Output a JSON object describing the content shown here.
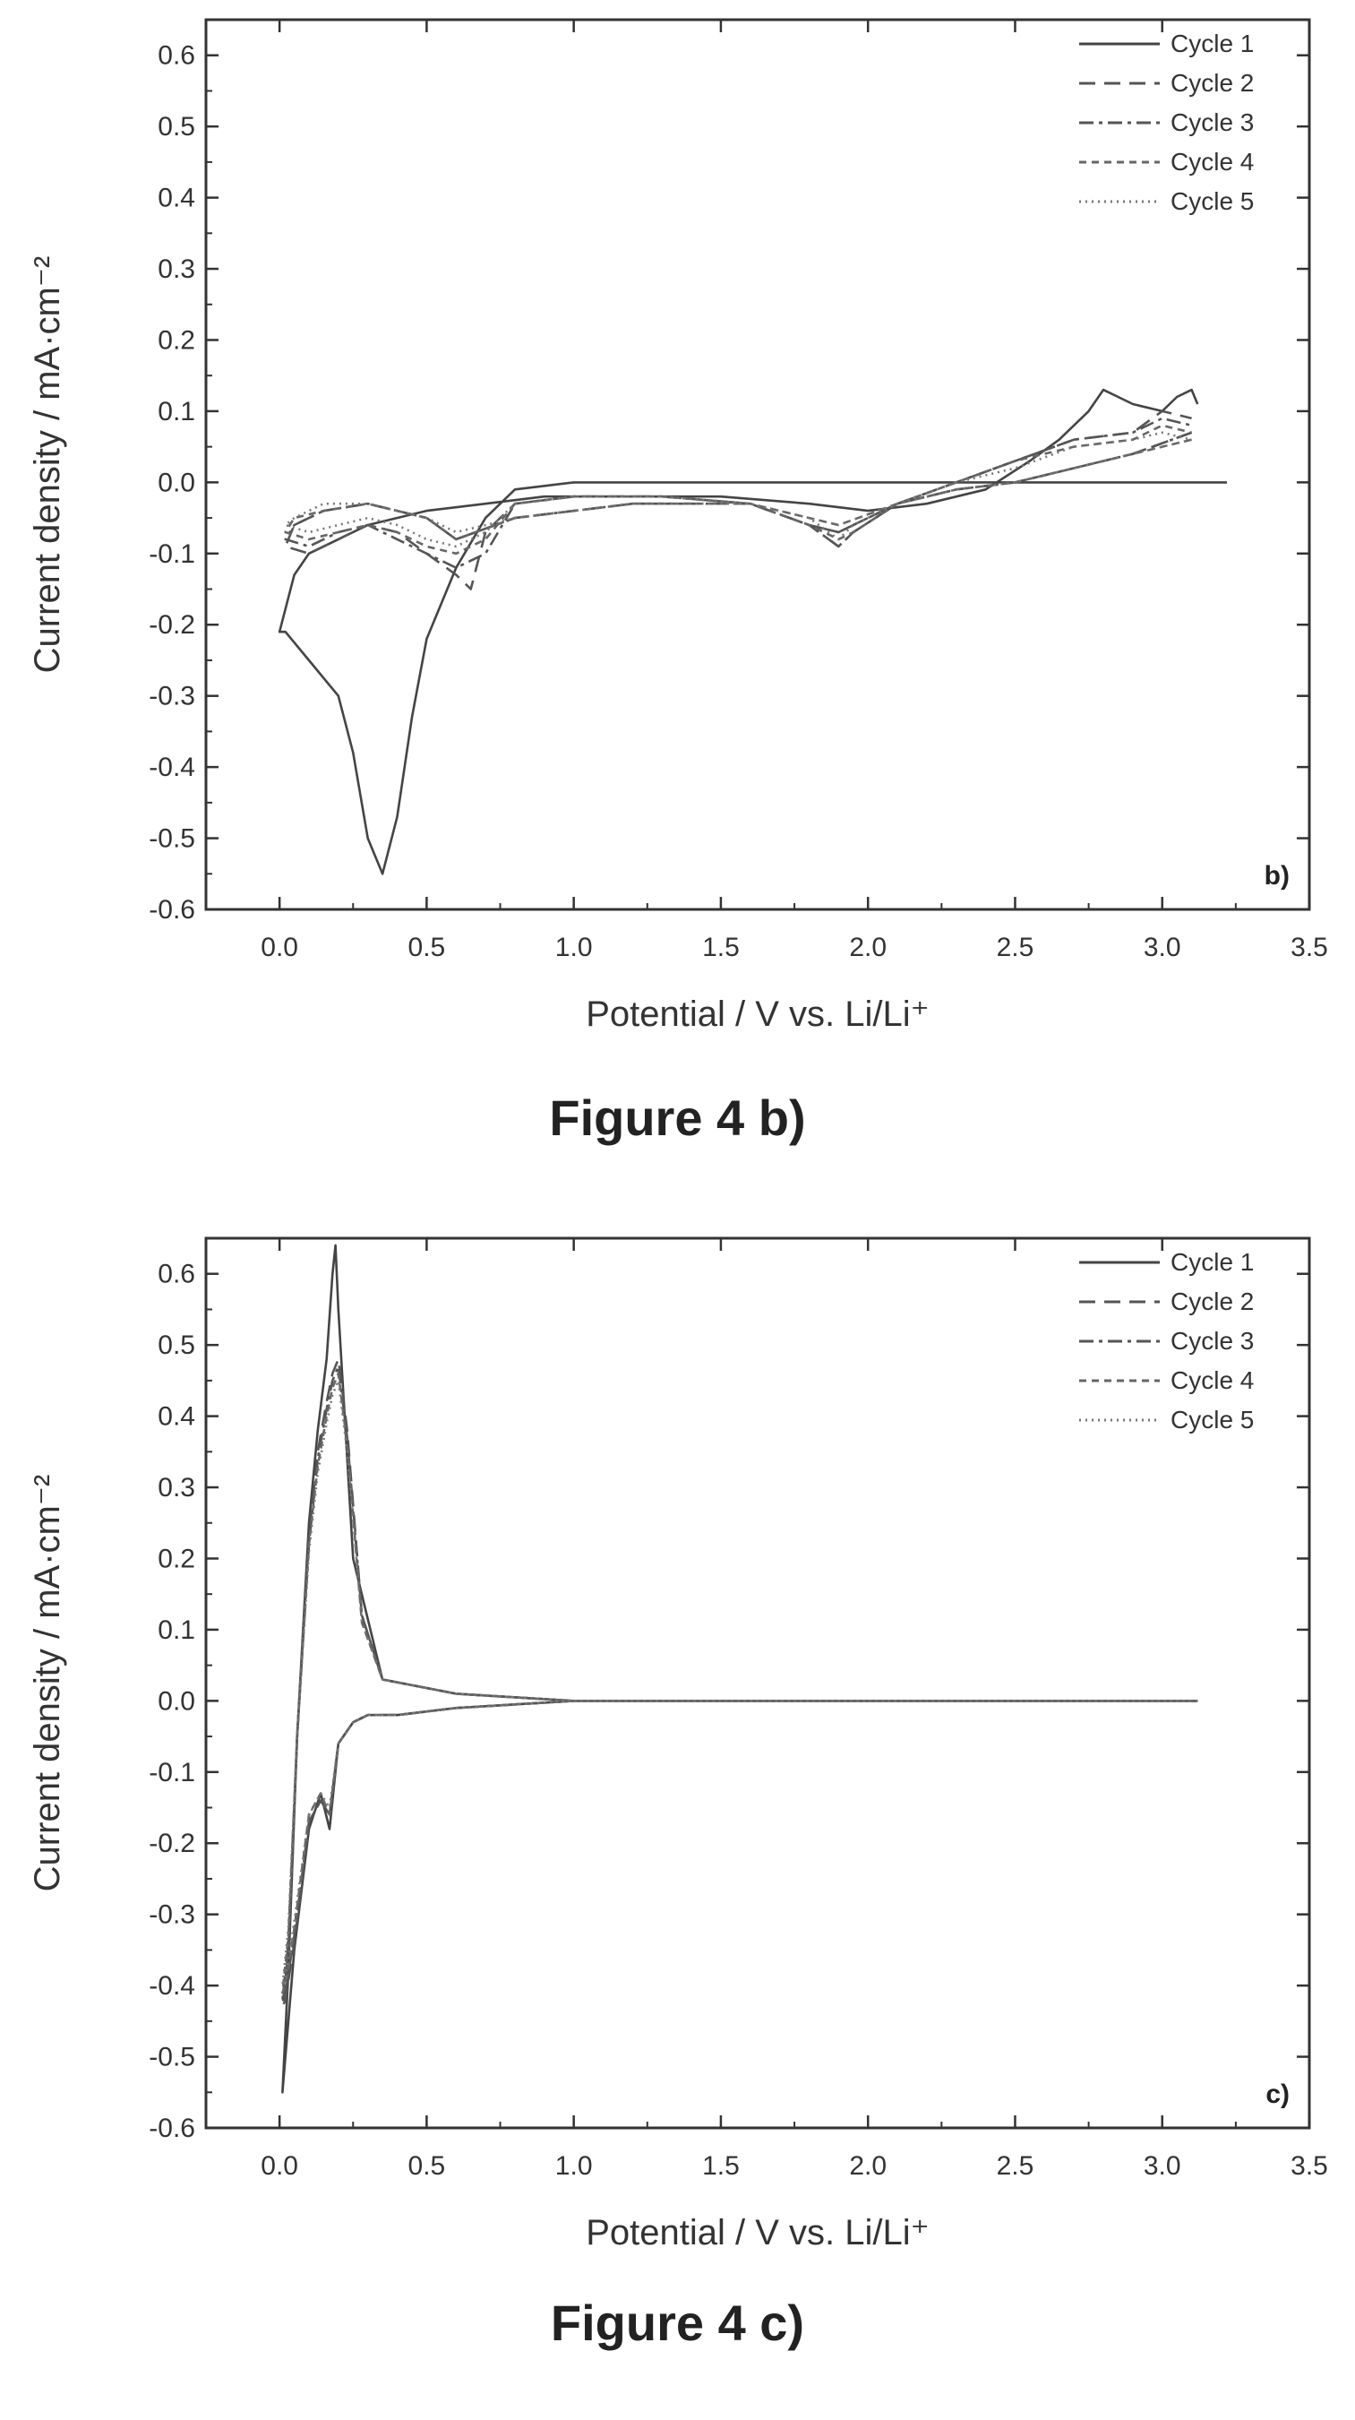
{
  "figures": [
    {
      "caption": "Figure 4 b)"
    },
    {
      "caption": "Figure 4 c)"
    }
  ],
  "chart_data": [
    {
      "type": "line",
      "panel_label": "b)",
      "xlabel": "Potential / V vs. Li/Li⁺",
      "ylabel": "Current density / mA·cm⁻²",
      "xlim": [
        -0.25,
        3.5
      ],
      "ylim": [
        -0.6,
        0.65
      ],
      "xticks": [
        "0.0",
        "0.5",
        "1.0",
        "1.5",
        "2.0",
        "2.5",
        "3.0",
        "3.5"
      ],
      "yticks": [
        "-0.6",
        "-0.5",
        "-0.4",
        "-0.3",
        "-0.2",
        "-0.1",
        "0.0",
        "0.1",
        "0.2",
        "0.3",
        "0.4",
        "0.5",
        "0.6"
      ],
      "legend_position": "top-right",
      "grid": false,
      "series": [
        {
          "name": "Cycle 1",
          "dash": "solid",
          "x": [
            3.22,
            3.0,
            2.8,
            2.6,
            2.4,
            2.2,
            2.0,
            1.8,
            1.5,
            1.2,
            1.0,
            0.8,
            0.7,
            0.6,
            0.5,
            0.45,
            0.4,
            0.35,
            0.3,
            0.25,
            0.2,
            0.1,
            0.02,
            0.0,
            0.05,
            0.1,
            0.2,
            0.3,
            0.5,
            0.7,
            0.9,
            1.2,
            1.5,
            1.8,
            2.0,
            2.2,
            2.4,
            2.55,
            2.65,
            2.75,
            2.8,
            2.85,
            2.9,
            3.0,
            3.05,
            3.1,
            3.12
          ],
          "y": [
            0.0,
            0.0,
            0.0,
            0.0,
            0.0,
            0.0,
            0.0,
            0.0,
            0.0,
            0.0,
            0.0,
            -0.01,
            -0.05,
            -0.12,
            -0.22,
            -0.33,
            -0.47,
            -0.55,
            -0.5,
            -0.38,
            -0.3,
            -0.25,
            -0.21,
            -0.21,
            -0.13,
            -0.1,
            -0.08,
            -0.06,
            -0.04,
            -0.03,
            -0.02,
            -0.02,
            -0.02,
            -0.03,
            -0.04,
            -0.03,
            -0.01,
            0.03,
            0.06,
            0.1,
            0.13,
            0.12,
            0.11,
            0.1,
            0.12,
            0.13,
            0.11
          ]
        },
        {
          "name": "Cycle 2",
          "dash": "long-dash",
          "x": [
            3.1,
            2.9,
            2.7,
            2.5,
            2.3,
            2.1,
            1.95,
            1.9,
            1.8,
            1.6,
            1.3,
            1.0,
            0.8,
            0.7,
            0.65,
            0.6,
            0.5,
            0.4,
            0.3,
            0.2,
            0.1,
            0.02,
            0.05,
            0.15,
            0.3,
            0.5,
            0.6,
            0.8,
            1.2,
            1.6,
            1.8,
            1.9,
            2.1,
            2.3,
            2.5,
            2.7,
            2.9,
            3.0,
            3.1
          ],
          "y": [
            0.07,
            0.04,
            0.02,
            0.0,
            -0.01,
            -0.03,
            -0.07,
            -0.09,
            -0.06,
            -0.03,
            -0.02,
            -0.02,
            -0.03,
            -0.07,
            -0.15,
            -0.13,
            -0.1,
            -0.07,
            -0.06,
            -0.08,
            -0.1,
            -0.09,
            -0.06,
            -0.04,
            -0.03,
            -0.05,
            -0.08,
            -0.05,
            -0.03,
            -0.03,
            -0.06,
            -0.07,
            -0.03,
            0.0,
            0.03,
            0.06,
            0.07,
            0.1,
            0.09
          ]
        },
        {
          "name": "Cycle 3",
          "dash": "dash-dot",
          "x": [
            3.1,
            2.9,
            2.7,
            2.5,
            2.3,
            2.1,
            1.95,
            1.9,
            1.8,
            1.6,
            1.3,
            1.0,
            0.8,
            0.7,
            0.6,
            0.5,
            0.4,
            0.3,
            0.2,
            0.1,
            0.02,
            0.05,
            0.15,
            0.3,
            0.5,
            0.6,
            0.8,
            1.2,
            1.6,
            1.8,
            1.9,
            2.1,
            2.3,
            2.5,
            2.7,
            2.9,
            3.0,
            3.1
          ],
          "y": [
            0.07,
            0.04,
            0.02,
            0.0,
            -0.01,
            -0.03,
            -0.07,
            -0.09,
            -0.06,
            -0.03,
            -0.02,
            -0.02,
            -0.03,
            -0.1,
            -0.12,
            -0.1,
            -0.08,
            -0.06,
            -0.07,
            -0.09,
            -0.08,
            -0.06,
            -0.04,
            -0.03,
            -0.05,
            -0.08,
            -0.05,
            -0.03,
            -0.03,
            -0.06,
            -0.07,
            -0.03,
            0.0,
            0.03,
            0.06,
            0.07,
            0.09,
            0.08
          ]
        },
        {
          "name": "Cycle 4",
          "dash": "short-dash",
          "x": [
            3.1,
            2.9,
            2.7,
            2.5,
            2.3,
            2.1,
            1.95,
            1.9,
            1.8,
            1.6,
            1.3,
            1.0,
            0.8,
            0.7,
            0.6,
            0.5,
            0.4,
            0.3,
            0.2,
            0.1,
            0.02,
            0.05,
            0.15,
            0.3,
            0.5,
            0.6,
            0.8,
            1.2,
            1.6,
            1.8,
            1.9,
            2.1,
            2.3,
            2.5,
            2.7,
            2.9,
            3.0,
            3.1
          ],
          "y": [
            0.06,
            0.04,
            0.02,
            0.0,
            -0.01,
            -0.03,
            -0.07,
            -0.08,
            -0.06,
            -0.03,
            -0.02,
            -0.02,
            -0.03,
            -0.08,
            -0.1,
            -0.09,
            -0.07,
            -0.06,
            -0.07,
            -0.08,
            -0.07,
            -0.05,
            -0.04,
            -0.03,
            -0.05,
            -0.08,
            -0.05,
            -0.03,
            -0.03,
            -0.05,
            -0.06,
            -0.03,
            0.0,
            0.03,
            0.05,
            0.06,
            0.08,
            0.07
          ]
        },
        {
          "name": "Cycle 5",
          "dash": "dotted",
          "x": [
            3.1,
            2.9,
            2.7,
            2.5,
            2.3,
            2.1,
            1.95,
            1.9,
            1.8,
            1.6,
            1.3,
            1.0,
            0.8,
            0.7,
            0.6,
            0.5,
            0.4,
            0.3,
            0.2,
            0.1,
            0.02,
            0.05,
            0.15,
            0.3,
            0.5,
            0.6,
            0.8,
            1.2,
            1.6,
            1.8,
            1.9,
            2.1,
            2.3,
            2.5,
            2.7,
            2.9,
            3.0,
            3.1
          ],
          "y": [
            0.06,
            0.04,
            0.02,
            0.0,
            -0.01,
            -0.03,
            -0.06,
            -0.08,
            -0.05,
            -0.03,
            -0.02,
            -0.02,
            -0.03,
            -0.07,
            -0.09,
            -0.08,
            -0.06,
            -0.05,
            -0.06,
            -0.07,
            -0.06,
            -0.05,
            -0.03,
            -0.03,
            -0.05,
            -0.07,
            -0.05,
            -0.03,
            -0.03,
            -0.05,
            -0.06,
            -0.03,
            0.0,
            0.02,
            0.05,
            0.06,
            0.07,
            0.06
          ]
        }
      ]
    },
    {
      "type": "line",
      "panel_label": "c)",
      "xlabel": "Potential / V vs. Li/Li⁺",
      "ylabel": "Current density / mA·cm⁻²",
      "xlim": [
        -0.25,
        3.5
      ],
      "ylim": [
        -0.6,
        0.65
      ],
      "xticks": [
        "0.0",
        "0.5",
        "1.0",
        "1.5",
        "2.0",
        "2.5",
        "3.0",
        "3.5"
      ],
      "yticks": [
        "-0.6",
        "-0.5",
        "-0.4",
        "-0.3",
        "-0.2",
        "-0.1",
        "0.0",
        "0.1",
        "0.2",
        "0.3",
        "0.4",
        "0.5",
        "0.6"
      ],
      "legend_position": "top-right",
      "grid": false,
      "series": [
        {
          "name": "Cycle 1",
          "dash": "solid",
          "x": [
            3.12,
            2.5,
            2.0,
            1.5,
            1.0,
            0.6,
            0.4,
            0.3,
            0.25,
            0.2,
            0.17,
            0.14,
            0.1,
            0.05,
            0.02,
            0.01,
            0.03,
            0.06,
            0.1,
            0.13,
            0.16,
            0.18,
            0.19,
            0.2,
            0.25,
            0.35,
            0.6,
            1.0,
            1.5,
            2.0,
            2.5,
            3.1
          ],
          "y": [
            0.0,
            0.0,
            0.0,
            0.0,
            0.0,
            -0.01,
            -0.02,
            -0.02,
            -0.03,
            -0.06,
            -0.18,
            -0.13,
            -0.18,
            -0.35,
            -0.5,
            -0.55,
            -0.38,
            -0.05,
            0.25,
            0.38,
            0.48,
            0.6,
            0.64,
            0.55,
            0.2,
            0.03,
            0.01,
            0.0,
            0.0,
            0.0,
            0.0,
            0.0
          ]
        },
        {
          "name": "Cycle 2",
          "dash": "long-dash",
          "x": [
            3.12,
            2.5,
            2.0,
            1.5,
            1.0,
            0.6,
            0.4,
            0.3,
            0.25,
            0.2,
            0.17,
            0.14,
            0.1,
            0.05,
            0.02,
            0.01,
            0.03,
            0.06,
            0.1,
            0.13,
            0.16,
            0.18,
            0.2,
            0.23,
            0.28,
            0.35,
            0.6,
            1.0,
            1.5,
            2.0,
            2.5,
            3.1
          ],
          "y": [
            0.0,
            0.0,
            0.0,
            0.0,
            0.0,
            -0.01,
            -0.02,
            -0.02,
            -0.03,
            -0.06,
            -0.16,
            -0.14,
            -0.17,
            -0.34,
            -0.42,
            -0.43,
            -0.35,
            -0.05,
            0.23,
            0.35,
            0.42,
            0.46,
            0.48,
            0.38,
            0.12,
            0.03,
            0.01,
            0.0,
            0.0,
            0.0,
            0.0,
            0.0
          ]
        },
        {
          "name": "Cycle 3",
          "dash": "dash-dot",
          "x": [
            3.12,
            2.5,
            2.0,
            1.5,
            1.0,
            0.6,
            0.4,
            0.3,
            0.25,
            0.2,
            0.17,
            0.14,
            0.1,
            0.05,
            0.02,
            0.01,
            0.03,
            0.06,
            0.1,
            0.13,
            0.16,
            0.18,
            0.2,
            0.23,
            0.28,
            0.35,
            0.6,
            1.0,
            1.5,
            2.0,
            2.5,
            3.1
          ],
          "y": [
            0.0,
            0.0,
            0.0,
            0.0,
            0.0,
            -0.01,
            -0.02,
            -0.02,
            -0.03,
            -0.06,
            -0.16,
            -0.14,
            -0.17,
            -0.33,
            -0.41,
            -0.42,
            -0.34,
            -0.05,
            0.22,
            0.34,
            0.41,
            0.45,
            0.47,
            0.37,
            0.12,
            0.03,
            0.01,
            0.0,
            0.0,
            0.0,
            0.0,
            0.0
          ]
        },
        {
          "name": "Cycle 4",
          "dash": "short-dash",
          "x": [
            3.12,
            2.5,
            2.0,
            1.5,
            1.0,
            0.6,
            0.4,
            0.3,
            0.25,
            0.2,
            0.17,
            0.14,
            0.1,
            0.05,
            0.02,
            0.01,
            0.03,
            0.06,
            0.1,
            0.13,
            0.16,
            0.18,
            0.2,
            0.23,
            0.28,
            0.35,
            0.6,
            1.0,
            1.5,
            2.0,
            2.5,
            3.1
          ],
          "y": [
            0.0,
            0.0,
            0.0,
            0.0,
            0.0,
            -0.01,
            -0.02,
            -0.02,
            -0.03,
            -0.06,
            -0.16,
            -0.13,
            -0.16,
            -0.32,
            -0.4,
            -0.41,
            -0.33,
            -0.05,
            0.22,
            0.33,
            0.4,
            0.44,
            0.46,
            0.36,
            0.11,
            0.03,
            0.01,
            0.0,
            0.0,
            0.0,
            0.0,
            0.0
          ]
        },
        {
          "name": "Cycle 5",
          "dash": "dotted",
          "x": [
            3.12,
            2.5,
            2.0,
            1.5,
            1.0,
            0.6,
            0.4,
            0.3,
            0.25,
            0.2,
            0.17,
            0.14,
            0.1,
            0.05,
            0.02,
            0.01,
            0.03,
            0.06,
            0.1,
            0.13,
            0.16,
            0.18,
            0.2,
            0.23,
            0.28,
            0.35,
            0.6,
            1.0,
            1.5,
            2.0,
            2.5,
            3.1
          ],
          "y": [
            0.0,
            0.0,
            0.0,
            0.0,
            0.0,
            -0.01,
            -0.02,
            -0.02,
            -0.03,
            -0.06,
            -0.15,
            -0.13,
            -0.16,
            -0.31,
            -0.39,
            -0.4,
            -0.32,
            -0.05,
            0.21,
            0.32,
            0.39,
            0.43,
            0.45,
            0.35,
            0.11,
            0.03,
            0.01,
            0.0,
            0.0,
            0.0,
            0.0,
            0.0
          ]
        }
      ]
    }
  ]
}
